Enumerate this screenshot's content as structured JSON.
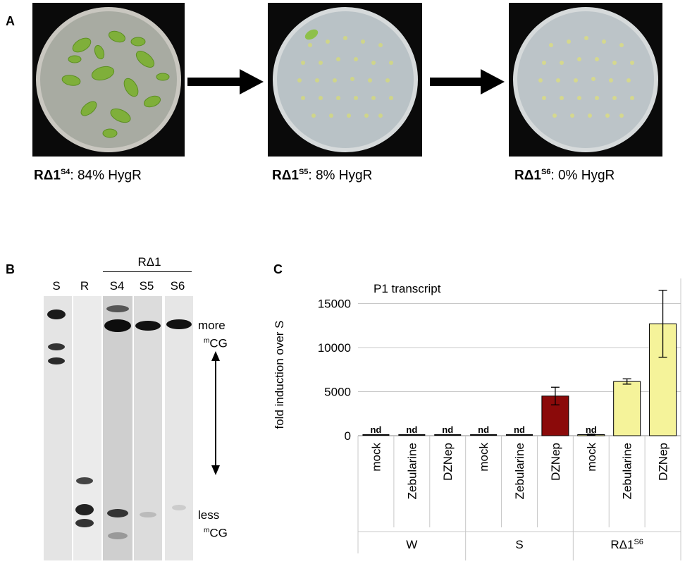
{
  "panels": {
    "a": "A",
    "b": "B",
    "c": "C"
  },
  "panel_a": {
    "captions": [
      {
        "prefix": "RΔ1",
        "sup": "S4",
        "suffix": ": 84% HygR"
      },
      {
        "prefix": "RΔ1",
        "sup": "S5",
        "suffix": ": 8% HygR"
      },
      {
        "prefix": "RΔ1",
        "sup": "S6",
        "suffix": ": 0% HygR"
      }
    ]
  },
  "panel_b": {
    "group_label": "RΔ1",
    "lanes": [
      "S",
      "R",
      "S4",
      "S5",
      "S6"
    ],
    "top_label_line1": "more",
    "top_label_line2_sup": "m",
    "top_label_line2": "CG",
    "bottom_label_line1": "less",
    "bottom_label_line2_sup": "m",
    "bottom_label_line2": "CG"
  },
  "chart_data": {
    "type": "bar",
    "title": "P1 transcript",
    "ylabel": "fold induction over S",
    "ylim": [
      0,
      17000
    ],
    "yticks": [
      0,
      5000,
      10000,
      15000
    ],
    "grid": true,
    "groups": [
      {
        "name": "W",
        "name_sup": ""
      },
      {
        "name": "S",
        "name_sup": ""
      },
      {
        "name": "RΔ1",
        "name_sup": "S6"
      }
    ],
    "categories": [
      "mock",
      "Zebularine",
      "DZNep",
      "mock",
      "Zebularine",
      "DZNep",
      "mock",
      "Zebularine",
      "DZNep"
    ],
    "values": [
      0,
      0,
      0,
      0,
      0,
      4500,
      120,
      6150,
      12700
    ],
    "errors": [
      0,
      0,
      0,
      0,
      0,
      1000,
      60,
      300,
      3800
    ],
    "nd_flags": [
      true,
      true,
      true,
      true,
      true,
      false,
      true,
      false,
      false
    ],
    "nd_label": "nd",
    "colors": [
      "#000000",
      "#000000",
      "#000000",
      "#000000",
      "#000000",
      "#8b0a0a",
      "#f5f39a",
      "#f5f39a",
      "#f5f39a"
    ]
  }
}
